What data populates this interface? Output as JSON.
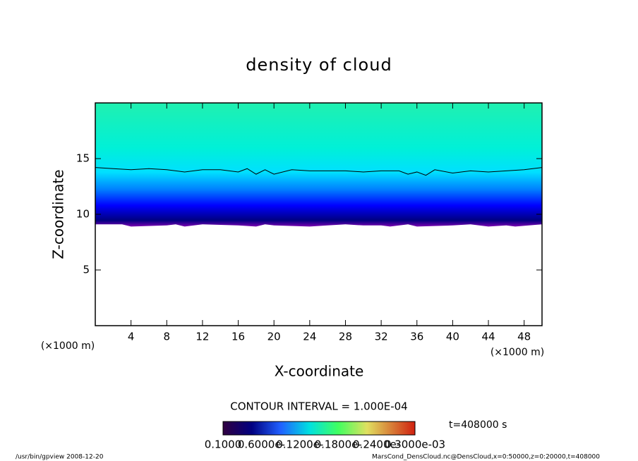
{
  "chart_data": {
    "type": "contour",
    "title": "density of cloud",
    "x_label": "X-coordinate",
    "y_label": "Z-coordinate",
    "x_unit": "(×1000 m)",
    "y_unit": "(×1000 m)",
    "xlim": [
      0,
      50
    ],
    "ylim": [
      0,
      20
    ],
    "xticks": [
      4,
      8,
      12,
      16,
      20,
      24,
      28,
      32,
      36,
      40,
      44,
      48
    ],
    "yticks": [
      5,
      10,
      15
    ],
    "contour": {
      "x": [
        0,
        2,
        4,
        6,
        8,
        10,
        12,
        14,
        16,
        17,
        18,
        19,
        20,
        22,
        24,
        26,
        28,
        30,
        32,
        34,
        35,
        36,
        37,
        38,
        40,
        42,
        44,
        46,
        48,
        50
      ],
      "values": [
        14.2,
        14.1,
        14.0,
        14.1,
        14.0,
        13.8,
        14.0,
        14.0,
        13.8,
        14.1,
        13.6,
        14.0,
        13.6,
        14.0,
        13.9,
        13.9,
        13.9,
        13.8,
        13.9,
        13.9,
        13.6,
        13.8,
        13.5,
        14.0,
        13.7,
        13.9,
        13.8,
        13.9,
        14.0,
        14.2
      ]
    },
    "base": {
      "x": [
        0,
        3,
        4,
        8,
        9,
        10,
        12,
        16,
        18,
        19,
        20,
        24,
        26,
        28,
        30,
        32,
        33,
        35,
        36,
        40,
        42,
        44,
        46,
        47,
        50
      ],
      "values": [
        9.1,
        9.1,
        8.9,
        9.0,
        9.1,
        8.9,
        9.1,
        9.0,
        8.9,
        9.1,
        9.0,
        8.9,
        9.0,
        9.1,
        9.0,
        9.0,
        8.9,
        9.1,
        8.9,
        9.0,
        9.1,
        8.9,
        9.0,
        8.9,
        9.1
      ]
    },
    "colorbar_title": "CONTOUR INTERVAL = 1.000E-04",
    "colorbar_labels": [
      "0.1000",
      "0.6000e-",
      "0.1200e-",
      "0.1800e-",
      "0.2400e-",
      "0.3000e-03"
    ],
    "time_label": "t=408000 s",
    "footer_left": "/usr/bin/gpview   2008-12-20",
    "footer_right": "MarsCond_DensCloud.nc@DensCloud,x=0:50000,z=0:20000,t=408000"
  }
}
